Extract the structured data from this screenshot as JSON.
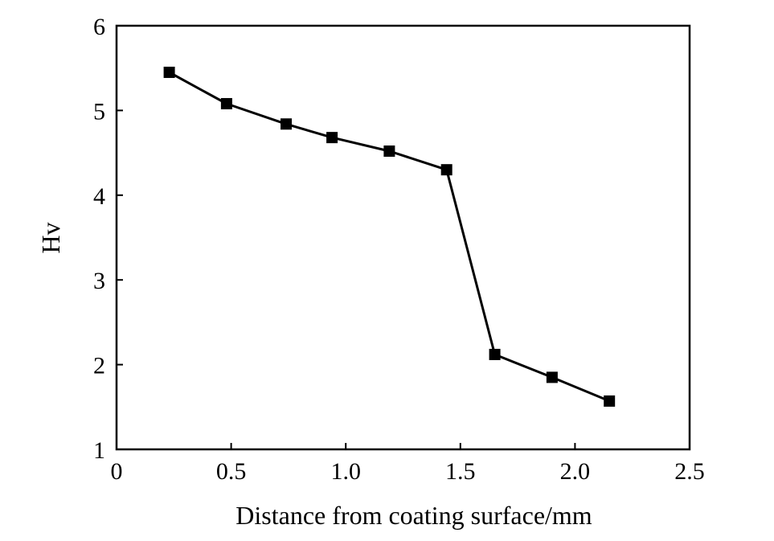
{
  "chart_data": {
    "type": "line",
    "xlabel": "Distance from coating surface/mm",
    "ylabel": "Hv",
    "xlim": [
      0,
      2.5
    ],
    "ylim": [
      1,
      6
    ],
    "x_ticks": [
      0,
      0.5,
      1.0,
      1.5,
      2.0,
      2.5
    ],
    "x_tick_labels": [
      "0",
      "0.5",
      "1.0",
      "1.5",
      "2.0",
      "2.5"
    ],
    "y_ticks": [
      1,
      2,
      3,
      4,
      5,
      6
    ],
    "y_tick_labels": [
      "1",
      "2",
      "3",
      "4",
      "5",
      "6"
    ],
    "grid": false,
    "colors": {
      "line": "#000000",
      "marker": "#000000",
      "axes": "#000000"
    },
    "marker": "square",
    "series": [
      {
        "x": [
          0.23,
          0.48,
          0.74,
          0.94,
          1.19,
          1.44,
          1.65,
          1.9,
          2.15
        ],
        "y": [
          5.45,
          5.08,
          4.84,
          4.68,
          4.52,
          4.3,
          2.12,
          1.85,
          1.57
        ]
      }
    ]
  }
}
